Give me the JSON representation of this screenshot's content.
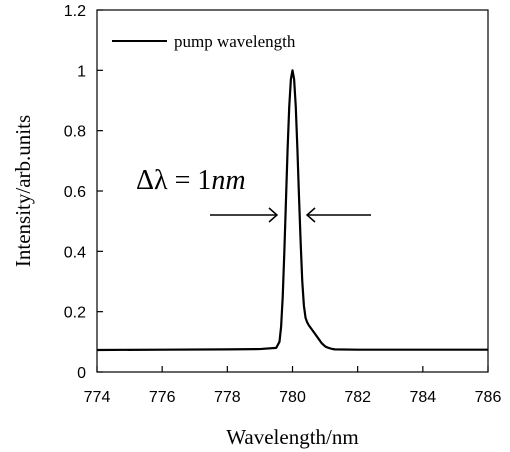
{
  "chart_data": {
    "type": "line",
    "xlabel": "Wavelength/nm",
    "ylabel": "Intensity/arb.units",
    "xlim": [
      774,
      786
    ],
    "ylim": [
      0,
      1.2
    ],
    "xticks": [
      "774",
      "776",
      "778",
      "780",
      "782",
      "784",
      "786"
    ],
    "yticks": [
      "0",
      "0.2",
      "0.4",
      "0.6",
      "0.8",
      "1",
      "1.2"
    ],
    "grid": false,
    "legend_position": "top-left",
    "series": [
      {
        "name": "pump wavelength",
        "color": "#000000",
        "x": [
          774,
          776,
          778,
          779,
          779.5,
          779.6,
          779.65,
          779.7,
          779.75,
          779.8,
          779.85,
          779.9,
          779.95,
          780.0,
          780.05,
          780.1,
          780.15,
          780.2,
          780.25,
          780.3,
          780.35,
          780.4,
          780.45,
          780.5,
          780.6,
          780.7,
          780.8,
          780.9,
          781.0,
          781.1,
          781.2,
          781.3,
          782,
          784,
          786
        ],
        "y": [
          0.073,
          0.074,
          0.075,
          0.076,
          0.08,
          0.1,
          0.15,
          0.25,
          0.4,
          0.57,
          0.74,
          0.88,
          0.97,
          1.0,
          0.97,
          0.88,
          0.74,
          0.58,
          0.43,
          0.3,
          0.22,
          0.18,
          0.165,
          0.155,
          0.14,
          0.125,
          0.11,
          0.095,
          0.085,
          0.08,
          0.077,
          0.075,
          0.074,
          0.074,
          0.074
        ]
      }
    ],
    "annotation": {
      "prefix": "Δλ = 1",
      "unit": "nm"
    }
  }
}
